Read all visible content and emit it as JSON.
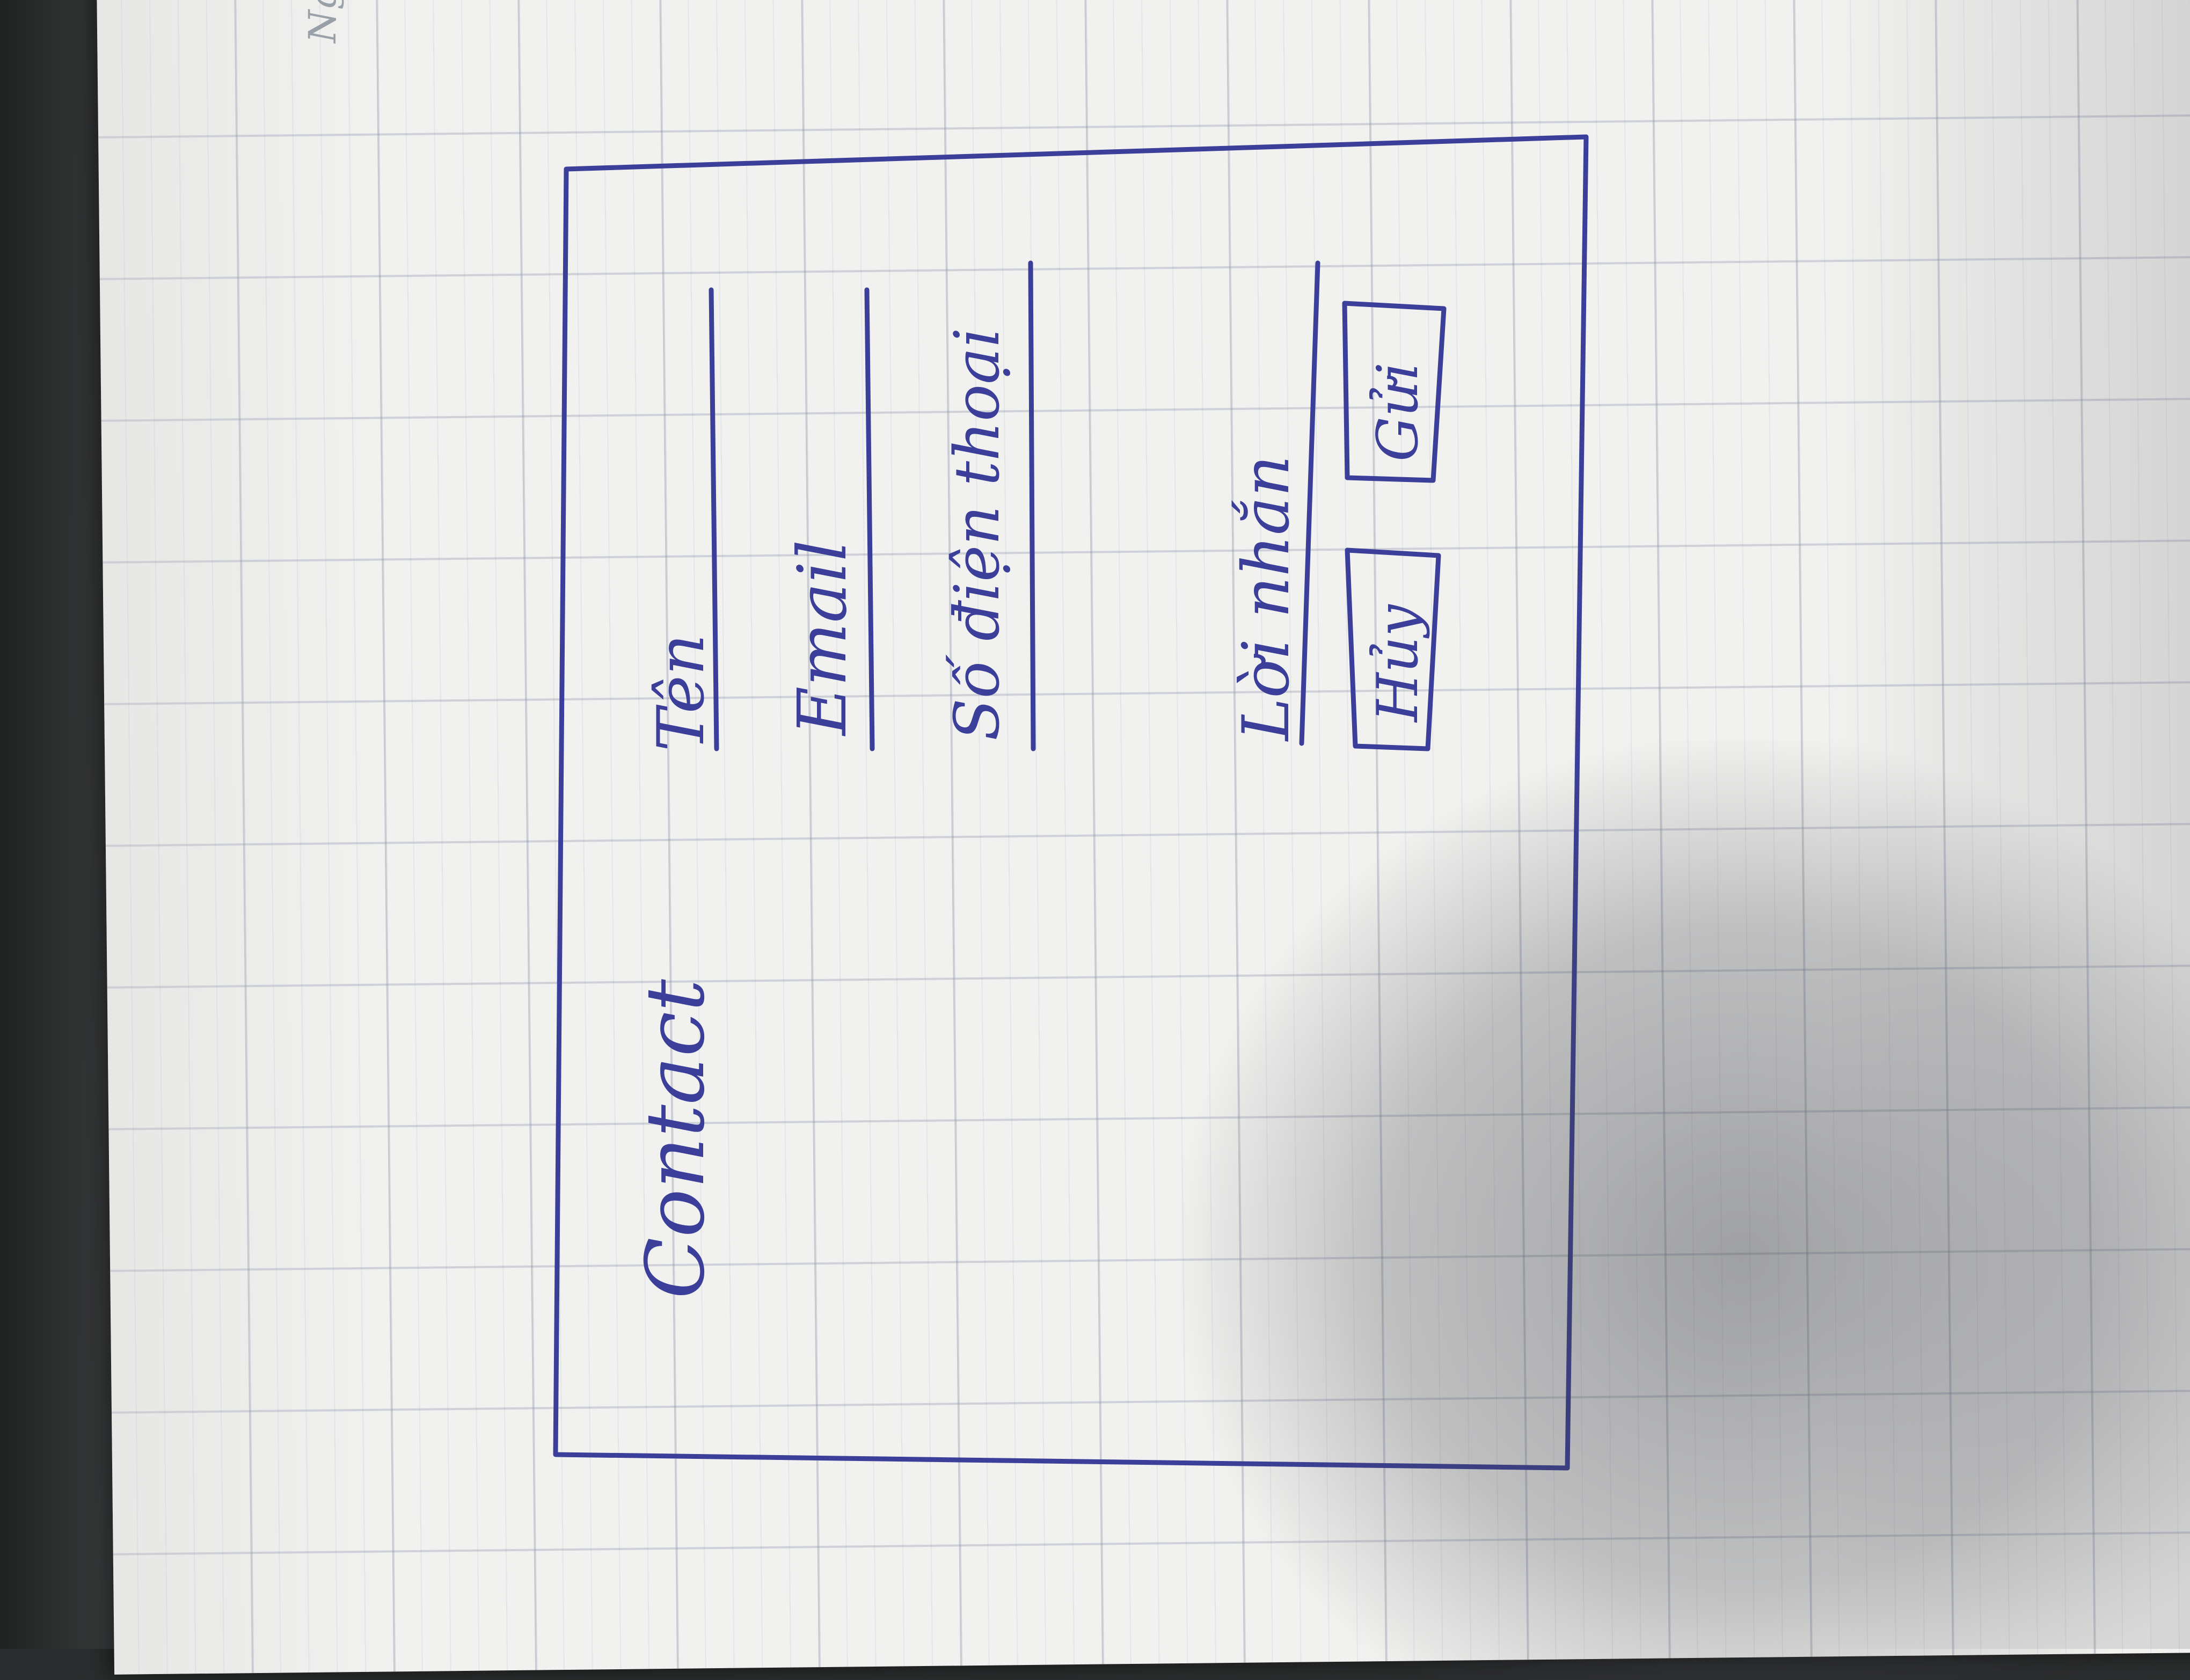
{
  "notebook": {
    "date_label": "Ngày ..."
  },
  "sketch": {
    "title": "Contact",
    "fields": [
      {
        "label": "Tên"
      },
      {
        "label": "Email"
      },
      {
        "label": "Số điện thoại"
      },
      {
        "label": "Lời nhắn"
      }
    ],
    "buttons": {
      "cancel": "Hủy",
      "submit": "Gửi"
    }
  },
  "colors": {
    "ink": "#3b3f99",
    "paper": "#f1f1ef",
    "grid": "#8c96aa"
  }
}
